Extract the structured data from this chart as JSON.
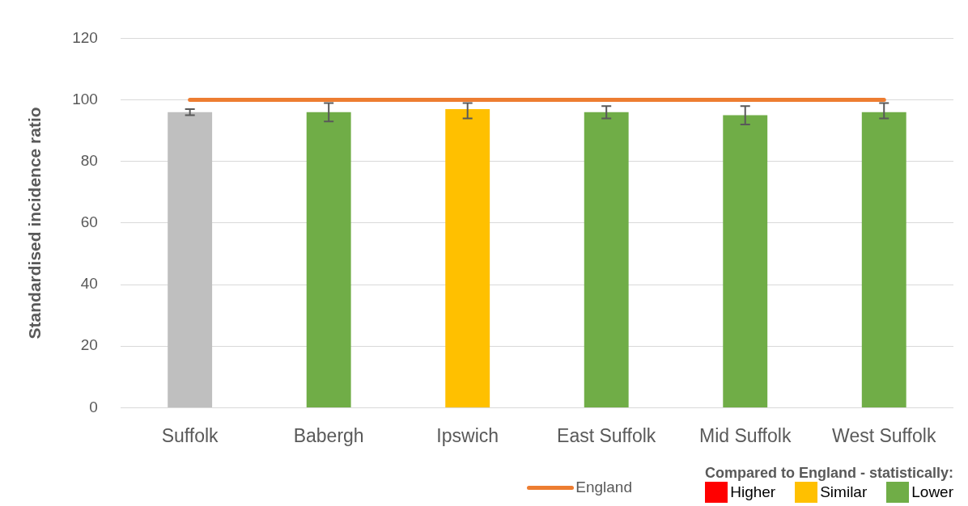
{
  "chart_data": {
    "type": "bar",
    "ylabel": "Standardised incidence ratio",
    "legend_title": "Compared to England - statistically:",
    "categories": [
      "Suffolk",
      "Babergh",
      "Ipswich",
      "East Suffolk",
      "Mid Suffolk",
      "West Suffolk"
    ],
    "series": [
      {
        "color": "#bfbfbf",
        "values": [
          96,
          null,
          null,
          null,
          null,
          null
        ],
        "errors": [
          [
            95,
            97
          ],
          null,
          null,
          null,
          null,
          null
        ]
      },
      {
        "name": "Higher",
        "color": "#ff0000",
        "values": [
          null,
          null,
          null,
          null,
          null,
          null
        ]
      },
      {
        "name": "Similar",
        "color": "#ffc000",
        "values": [
          null,
          null,
          97,
          null,
          null,
          null
        ],
        "errors": [
          null,
          null,
          [
            94,
            99
          ],
          null,
          null,
          null
        ]
      },
      {
        "name": "Lower",
        "color": "#70ad47",
        "values": [
          null,
          96,
          null,
          96,
          95,
          96
        ],
        "errors": [
          null,
          [
            93,
            99
          ],
          null,
          [
            94,
            98
          ],
          [
            92,
            98
          ],
          [
            94,
            99
          ]
        ]
      },
      {
        "name": "England",
        "type": "line",
        "color": "#ed7d31",
        "values": [
          100,
          100,
          100,
          100,
          100,
          100
        ]
      }
    ],
    "ylim": [
      0,
      120
    ],
    "yticks": [
      0,
      20,
      40,
      60,
      80,
      100,
      120
    ],
    "grid": "y",
    "legend": "bottom",
    "marker": "none"
  }
}
